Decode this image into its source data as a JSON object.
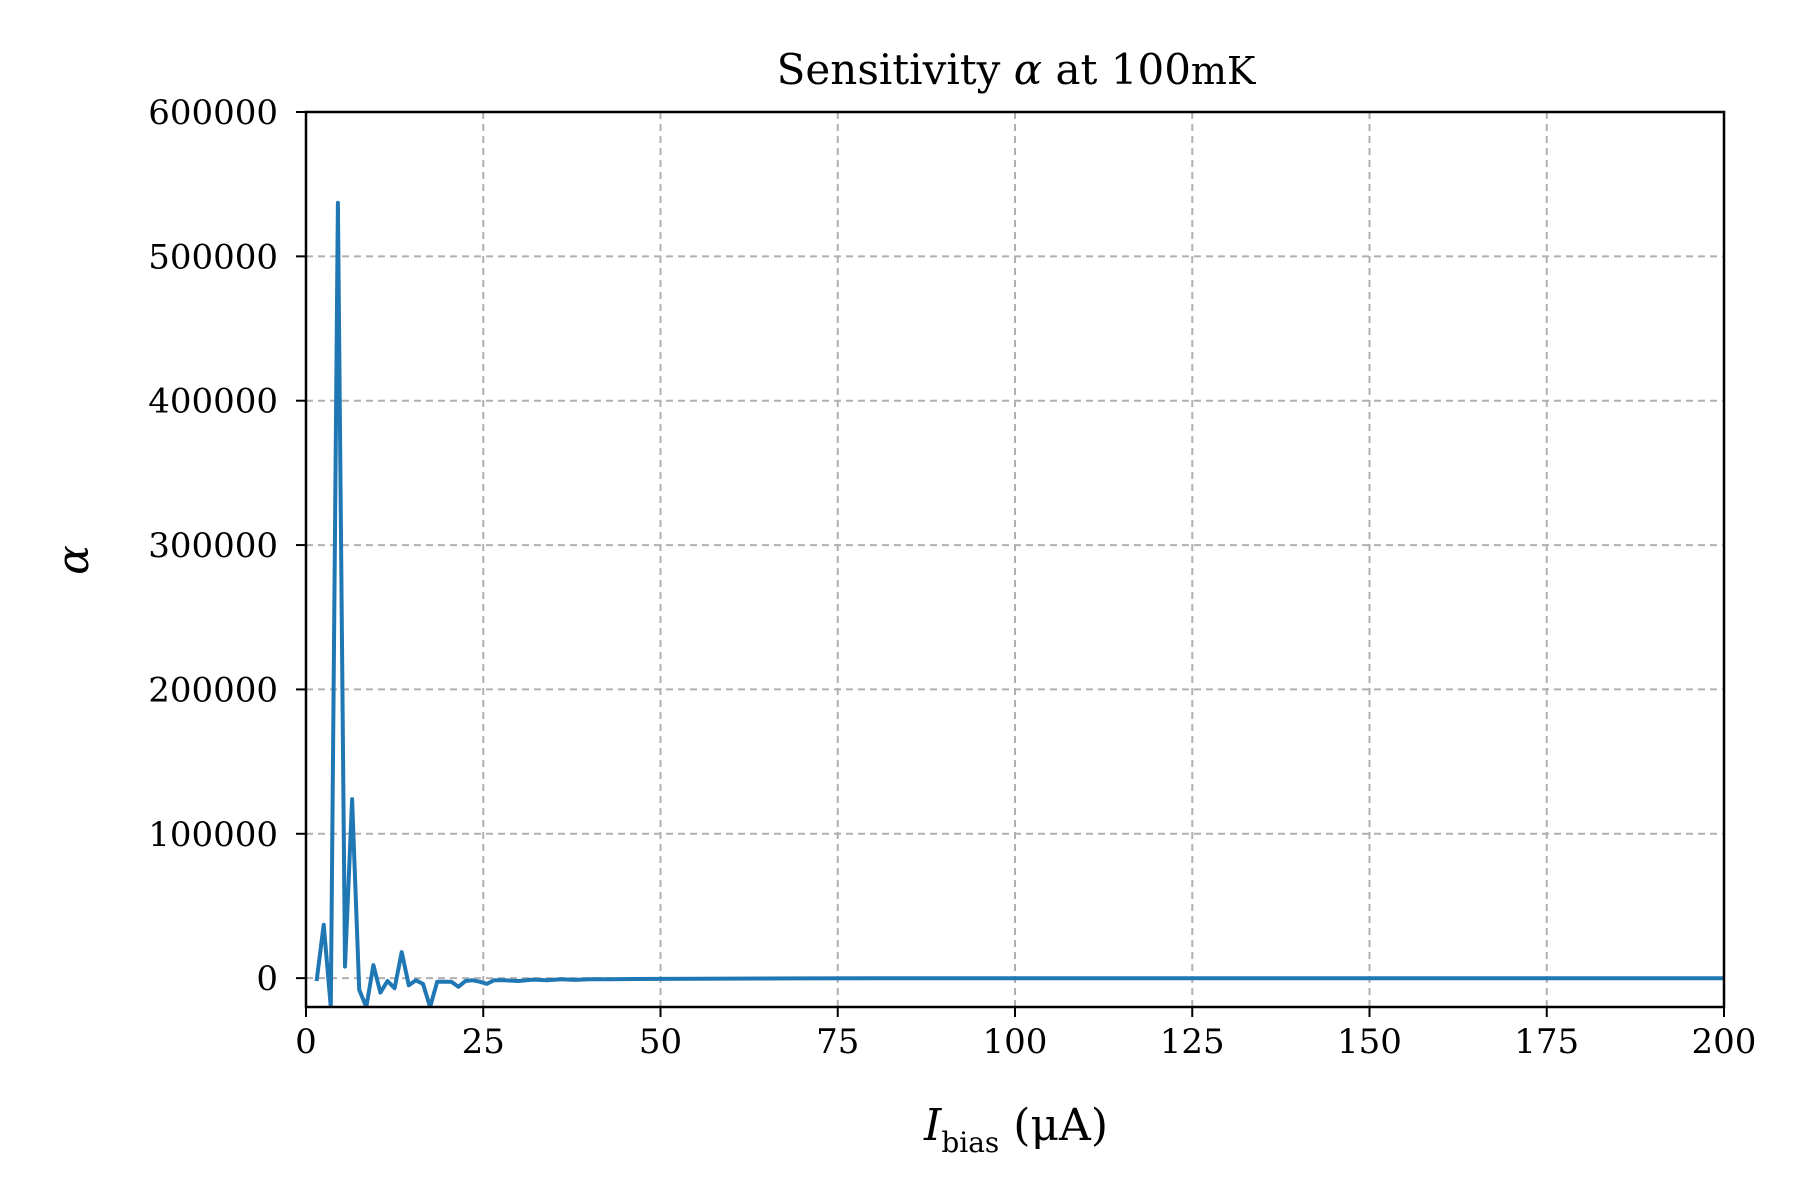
{
  "chart_data": {
    "type": "line",
    "title_main": "Sensitivity",
    "title_symbol": "α",
    "title_mid": " at 100",
    "title_unit": "mK",
    "xlabel_var": "I",
    "xlabel_sub": "bias",
    "xlabel_unit": " (μA)",
    "ylabel": "α",
    "xlim": [
      0,
      200
    ],
    "ylim": [
      -20000,
      600000
    ],
    "x_ticks": [
      0,
      25,
      50,
      75,
      100,
      125,
      150,
      175,
      200
    ],
    "y_ticks": [
      0,
      100000,
      200000,
      300000,
      400000,
      500000,
      600000
    ],
    "grid": true,
    "line_color": "#1f77b4",
    "series": [
      {
        "x": [
          1.5,
          2.5,
          3.5,
          4.5,
          5.5,
          6.5,
          7.5,
          8.5,
          9.5,
          10.5,
          11.5,
          12.5,
          13.5,
          14.5,
          15.5,
          16.5,
          17.5,
          18.5,
          19.5,
          20.5,
          21.5,
          22.5,
          23.5,
          24.5,
          25.5,
          26.5,
          28,
          30,
          32,
          34,
          36,
          38,
          40,
          43,
          46,
          50,
          55,
          60,
          70,
          80,
          100,
          125,
          150,
          175,
          200
        ],
        "y": [
          -2000,
          37000,
          -20000,
          537000,
          8000,
          124000,
          -8000,
          -20000,
          9000,
          -10000,
          -2000,
          -7000,
          18000,
          -5000,
          -1500,
          -4000,
          -20000,
          -2500,
          -2500,
          -2500,
          -6000,
          -2000,
          -1500,
          -2500,
          -4000,
          -1500,
          -1500,
          -2000,
          -1000,
          -1500,
          -800,
          -1200,
          -800,
          -800,
          -600,
          -500,
          -400,
          -300,
          -200,
          -150,
          -100,
          -80,
          -60,
          -50,
          -40
        ]
      }
    ]
  }
}
